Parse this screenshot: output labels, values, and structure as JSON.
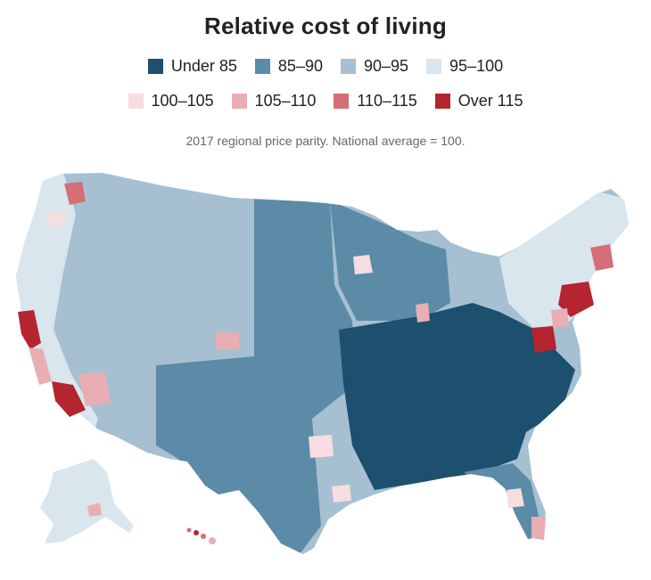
{
  "title": "Relative cost of living",
  "subtitle": "2017 regional price parity. National average = 100.",
  "legend": [
    {
      "label": "Under 85",
      "color": "#1d4f6e"
    },
    {
      "label": "85–90",
      "color": "#5b8ba6"
    },
    {
      "label": "90–95",
      "color": "#a6c0d1"
    },
    {
      "label": "95–100",
      "color": "#d9e6ee"
    },
    {
      "label": "100–105",
      "color": "#f5dde0"
    },
    {
      "label": "105–110",
      "color": "#e9aeb4"
    },
    {
      "label": "110–115",
      "color": "#d56e77"
    },
    {
      "label": "Over 115",
      "color": "#b5252f"
    }
  ],
  "colors": {
    "background": "#ffffff",
    "border": "#ffffff"
  }
}
